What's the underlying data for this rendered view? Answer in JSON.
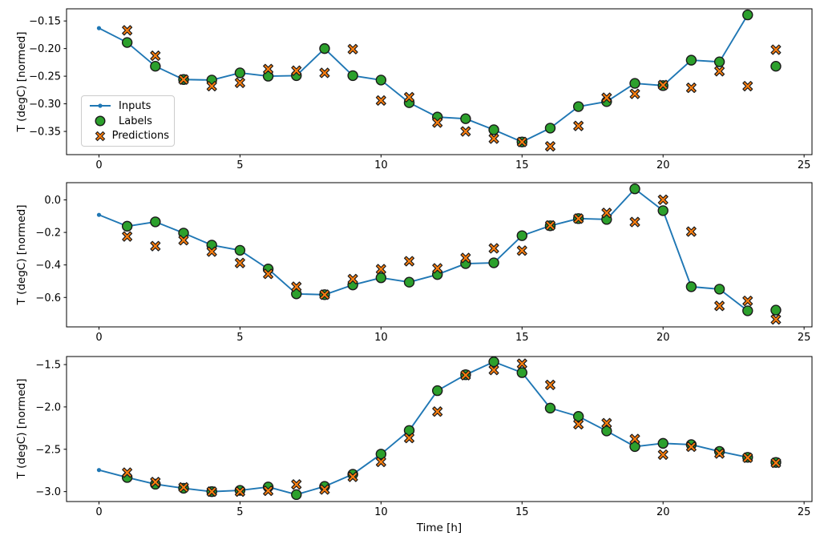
{
  "chart_data": {
    "type": "line",
    "title": "",
    "xlabel": "Time [h]",
    "xlim": [
      -1.15,
      25.28
    ],
    "xticks": [
      0,
      5,
      10,
      15,
      20,
      25
    ],
    "grid": false,
    "colors": {
      "inputs_line": "#1f77b4",
      "labels_marker": "#2ca02c",
      "predictions_marker": "#ff7f0e",
      "marker_edge": "#1a1a1a",
      "spine": "#000000"
    },
    "legend": {
      "position": "upper-left-of-first-subplot",
      "items": [
        {
          "label": "Inputs",
          "marker": "line-dot",
          "color": "#1f77b4"
        },
        {
          "label": "Labels",
          "marker": "circle",
          "color": "#2ca02c"
        },
        {
          "label": "Predictions",
          "marker": "x",
          "color": "#ff7f0e"
        }
      ]
    },
    "subplots": [
      {
        "ylabel": "T (degC) [normed]",
        "ylim": [
          -0.392,
          -0.128
        ],
        "yticks": [
          {
            "value": -0.15,
            "label": "−0.15"
          },
          {
            "value": -0.2,
            "label": "−0.20"
          },
          {
            "value": -0.25,
            "label": "−0.25"
          },
          {
            "value": -0.3,
            "label": "−0.30"
          },
          {
            "value": -0.35,
            "label": "−0.35"
          }
        ],
        "series": {
          "inputs": {
            "x": [
              0,
              1,
              2,
              3,
              4,
              5,
              6,
              7,
              8,
              9,
              10,
              11,
              12,
              13,
              14,
              15,
              16,
              17,
              18,
              19,
              20,
              21,
              22,
              23
            ],
            "y": [
              -0.163,
              -0.189,
              -0.232,
              -0.256,
              -0.257,
              -0.244,
              -0.25,
              -0.249,
              -0.2,
              -0.249,
              -0.257,
              -0.298,
              -0.324,
              -0.327,
              -0.347,
              -0.369,
              -0.344,
              -0.305,
              -0.296,
              -0.263,
              -0.267,
              -0.221,
              -0.224,
              -0.139
            ]
          },
          "labels": {
            "x": [
              1,
              2,
              3,
              4,
              5,
              6,
              7,
              8,
              9,
              10,
              11,
              12,
              13,
              14,
              15,
              16,
              17,
              18,
              19,
              20,
              21,
              22,
              23,
              24
            ],
            "y": [
              -0.189,
              -0.232,
              -0.256,
              -0.257,
              -0.244,
              -0.25,
              -0.249,
              -0.2,
              -0.249,
              -0.257,
              -0.298,
              -0.324,
              -0.327,
              -0.347,
              -0.369,
              -0.344,
              -0.305,
              -0.296,
              -0.263,
              -0.267,
              -0.221,
              -0.224,
              -0.139,
              -0.232
            ]
          },
          "predictions": {
            "x": [
              1,
              2,
              3,
              4,
              5,
              6,
              7,
              8,
              9,
              10,
              11,
              12,
              13,
              14,
              15,
              16,
              17,
              18,
              19,
              20,
              21,
              22,
              23,
              24
            ],
            "y": [
              -0.167,
              -0.213,
              -0.256,
              -0.268,
              -0.262,
              -0.237,
              -0.24,
              -0.244,
              -0.201,
              -0.294,
              -0.288,
              -0.334,
              -0.35,
              -0.363,
              -0.369,
              -0.377,
              -0.34,
              -0.289,
              -0.282,
              -0.266,
              -0.271,
              -0.241,
              -0.268,
              -0.202
            ]
          }
        }
      },
      {
        "ylabel": "T (degC) [normed]",
        "ylim": [
          -0.781,
          0.106
        ],
        "yticks": [
          {
            "value": 0.0,
            "label": "0.0"
          },
          {
            "value": -0.2,
            "label": "−0.2"
          },
          {
            "value": -0.4,
            "label": "−0.4"
          },
          {
            "value": -0.6,
            "label": "−0.6"
          }
        ],
        "series": {
          "inputs": {
            "x": [
              0,
              1,
              2,
              3,
              4,
              5,
              6,
              7,
              8,
              9,
              10,
              11,
              12,
              13,
              14,
              15,
              16,
              17,
              18,
              19,
              20,
              21,
              22,
              23
            ],
            "y": [
              -0.092,
              -0.162,
              -0.135,
              -0.204,
              -0.278,
              -0.31,
              -0.425,
              -0.578,
              -0.583,
              -0.523,
              -0.479,
              -0.506,
              -0.459,
              -0.392,
              -0.387,
              -0.22,
              -0.159,
              -0.115,
              -0.12,
              0.068,
              -0.066,
              -0.534,
              -0.549,
              -0.682
            ]
          },
          "labels": {
            "x": [
              1,
              2,
              3,
              4,
              5,
              6,
              7,
              8,
              9,
              10,
              11,
              12,
              13,
              14,
              15,
              16,
              17,
              18,
              19,
              20,
              21,
              22,
              23,
              24
            ],
            "y": [
              -0.162,
              -0.135,
              -0.204,
              -0.278,
              -0.31,
              -0.425,
              -0.578,
              -0.583,
              -0.523,
              -0.479,
              -0.506,
              -0.459,
              -0.392,
              -0.387,
              -0.22,
              -0.159,
              -0.115,
              -0.12,
              0.068,
              -0.066,
              -0.534,
              -0.549,
              -0.682,
              -0.678
            ]
          },
          "predictions": {
            "x": [
              1,
              2,
              3,
              4,
              5,
              6,
              7,
              8,
              9,
              10,
              11,
              12,
              13,
              14,
              15,
              16,
              17,
              18,
              19,
              20,
              21,
              22,
              23,
              24
            ],
            "y": [
              -0.225,
              -0.284,
              -0.248,
              -0.318,
              -0.388,
              -0.455,
              -0.534,
              -0.583,
              -0.487,
              -0.426,
              -0.377,
              -0.421,
              -0.357,
              -0.298,
              -0.312,
              -0.157,
              -0.115,
              -0.08,
              -0.136,
              0.001,
              -0.195,
              -0.652,
              -0.621,
              -0.735
            ]
          }
        }
      },
      {
        "ylabel": "T (degC) [normed]",
        "ylim": [
          -3.117,
          -1.405
        ],
        "yticks": [
          {
            "value": -1.5,
            "label": "−1.5"
          },
          {
            "value": -2.0,
            "label": "−2.0"
          },
          {
            "value": -2.5,
            "label": "−2.5"
          },
          {
            "value": -3.0,
            "label": "−3.0"
          }
        ],
        "series": {
          "inputs": {
            "x": [
              0,
              1,
              2,
              3,
              4,
              5,
              6,
              7,
              8,
              9,
              10,
              11,
              12,
              13,
              14,
              15,
              16,
              17,
              18,
              19,
              20,
              21,
              22,
              23
            ],
            "y": [
              -2.745,
              -2.833,
              -2.912,
              -2.96,
              -3.0,
              -2.985,
              -2.945,
              -3.035,
              -2.938,
              -2.795,
              -2.557,
              -2.278,
              -1.808,
              -1.62,
              -1.468,
              -1.595,
              -2.014,
              -2.112,
              -2.284,
              -2.468,
              -2.43,
              -2.445,
              -2.525,
              -2.595
            ]
          },
          "labels": {
            "x": [
              1,
              2,
              3,
              4,
              5,
              6,
              7,
              8,
              9,
              10,
              11,
              12,
              13,
              14,
              15,
              16,
              17,
              18,
              19,
              20,
              21,
              22,
              23,
              24
            ],
            "y": [
              -2.833,
              -2.912,
              -2.96,
              -3.0,
              -2.985,
              -2.945,
              -3.035,
              -2.938,
              -2.795,
              -2.557,
              -2.278,
              -1.808,
              -1.62,
              -1.468,
              -1.595,
              -2.014,
              -2.112,
              -2.284,
              -2.468,
              -2.43,
              -2.445,
              -2.525,
              -2.595,
              -2.655
            ]
          },
          "predictions": {
            "x": [
              1,
              2,
              3,
              4,
              5,
              6,
              7,
              8,
              9,
              10,
              11,
              12,
              13,
              14,
              15,
              16,
              17,
              18,
              19,
              20,
              21,
              22,
              23,
              24
            ],
            "y": [
              -2.776,
              -2.887,
              -2.95,
              -3.0,
              -3.0,
              -2.99,
              -2.915,
              -2.975,
              -2.825,
              -2.649,
              -2.367,
              -2.055,
              -1.625,
              -1.564,
              -1.49,
              -1.74,
              -2.205,
              -2.192,
              -2.379,
              -2.564,
              -2.47,
              -2.55,
              -2.6,
              -2.66
            ]
          }
        }
      }
    ]
  }
}
